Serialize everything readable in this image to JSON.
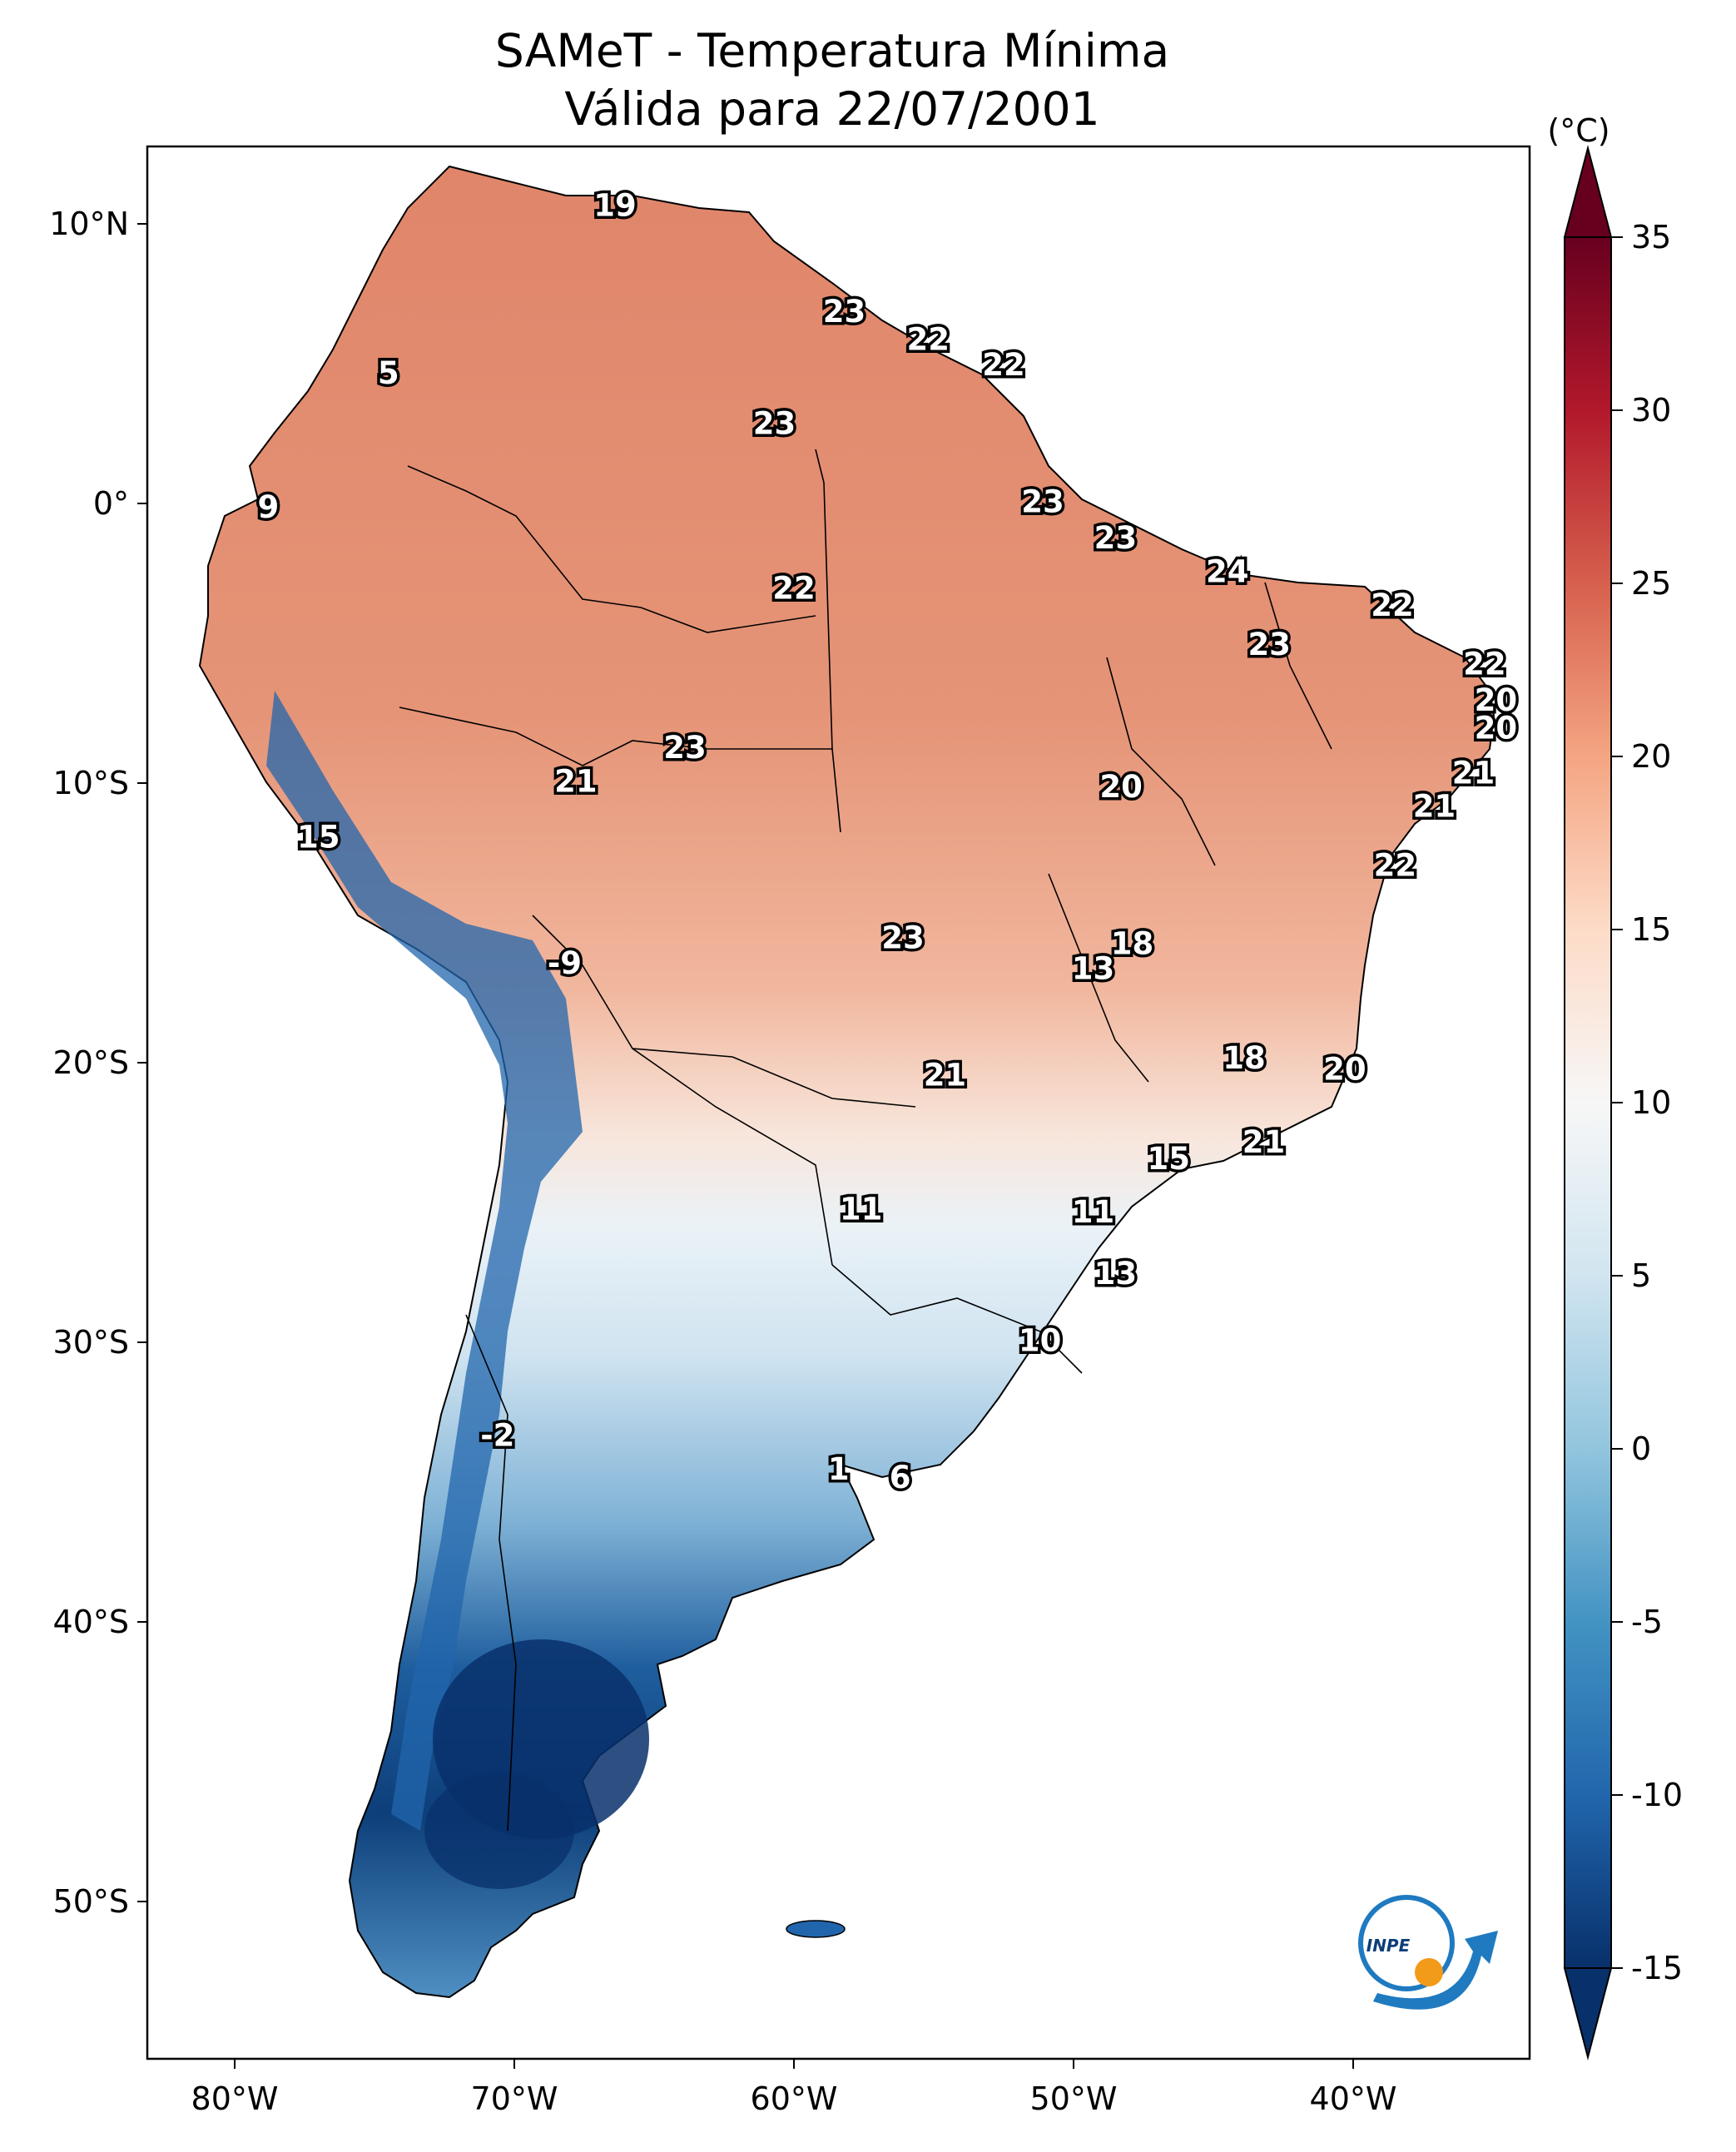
{
  "title": {
    "line1": "SAMeT - Temperatura Mínima",
    "line2": "Válida para 22/07/2001"
  },
  "colorbar": {
    "unit": "(°C)",
    "min": -15,
    "max": 35,
    "ticks": [
      "35",
      "30",
      "25",
      "20",
      "15",
      "10",
      "5",
      "0",
      "-5",
      "-10",
      "-15"
    ],
    "colors": [
      "#08306b",
      "#2166ac",
      "#4393c3",
      "#92c5de",
      "#d1e5f0",
      "#f7f7f7",
      "#fddbc7",
      "#f4a582",
      "#d6604d",
      "#b2182b",
      "#67001f"
    ]
  },
  "map_axes": {
    "lon_ticks": [
      "80°W",
      "70°W",
      "60°W",
      "50°W",
      "40°W"
    ],
    "lat_ticks": [
      "10°N",
      "0°",
      "10°S",
      "20°S",
      "30°S",
      "40°S",
      "50°S"
    ]
  },
  "station_labels": [
    {
      "text": "19",
      "lon": -66.4,
      "lat": 10.6
    },
    {
      "text": "5",
      "lon": -74.5,
      "lat": 4.6
    },
    {
      "text": "9",
      "lon": -78.8,
      "lat": -0.2
    },
    {
      "text": "23",
      "lon": -58.2,
      "lat": 6.8
    },
    {
      "text": "22",
      "lon": -55.2,
      "lat": 5.8
    },
    {
      "text": "22",
      "lon": -52.5,
      "lat": 4.9
    },
    {
      "text": "23",
      "lon": -60.7,
      "lat": 2.8
    },
    {
      "text": "23",
      "lon": -51.1,
      "lat": 0.0
    },
    {
      "text": "23",
      "lon": -48.5,
      "lat": -1.3
    },
    {
      "text": "24",
      "lon": -44.5,
      "lat": -2.5
    },
    {
      "text": "22",
      "lon": -60.0,
      "lat": -3.1
    },
    {
      "text": "22",
      "lon": -38.6,
      "lat": -3.7
    },
    {
      "text": "23",
      "lon": -43.0,
      "lat": -5.1
    },
    {
      "text": "22",
      "lon": -35.3,
      "lat": -5.8
    },
    {
      "text": "20",
      "lon": -34.9,
      "lat": -7.1
    },
    {
      "text": "20",
      "lon": -34.9,
      "lat": -8.1
    },
    {
      "text": "23",
      "lon": -63.9,
      "lat": -8.8
    },
    {
      "text": "21",
      "lon": -67.8,
      "lat": -10.0
    },
    {
      "text": "20",
      "lon": -48.3,
      "lat": -10.2
    },
    {
      "text": "21",
      "lon": -35.7,
      "lat": -9.7
    },
    {
      "text": "21",
      "lon": -37.1,
      "lat": -10.9
    },
    {
      "text": "15",
      "lon": -77.0,
      "lat": -12.0
    },
    {
      "text": "22",
      "lon": -38.5,
      "lat": -13.0
    },
    {
      "text": "23",
      "lon": -56.1,
      "lat": -15.6
    },
    {
      "text": "18",
      "lon": -47.9,
      "lat": -15.8
    },
    {
      "text": "13",
      "lon": -49.3,
      "lat": -16.7
    },
    {
      "text": "-9",
      "lon": -68.2,
      "lat": -16.5
    },
    {
      "text": "18",
      "lon": -43.9,
      "lat": -19.9
    },
    {
      "text": "20",
      "lon": -40.3,
      "lat": -20.3
    },
    {
      "text": "21",
      "lon": -54.6,
      "lat": -20.5
    },
    {
      "text": "21",
      "lon": -43.2,
      "lat": -22.9
    },
    {
      "text": "15",
      "lon": -46.6,
      "lat": -23.5
    },
    {
      "text": "11",
      "lon": -57.6,
      "lat": -25.3
    },
    {
      "text": "11",
      "lon": -49.3,
      "lat": -25.4
    },
    {
      "text": "13",
      "lon": -48.5,
      "lat": -27.6
    },
    {
      "text": "10",
      "lon": -51.2,
      "lat": -30.0
    },
    {
      "text": "-2",
      "lon": -70.6,
      "lat": -33.4
    },
    {
      "text": "1",
      "lon": -58.4,
      "lat": -34.6
    },
    {
      "text": "6",
      "lon": -56.2,
      "lat": -34.9
    }
  ],
  "logo": {
    "text": "INPE"
  }
}
